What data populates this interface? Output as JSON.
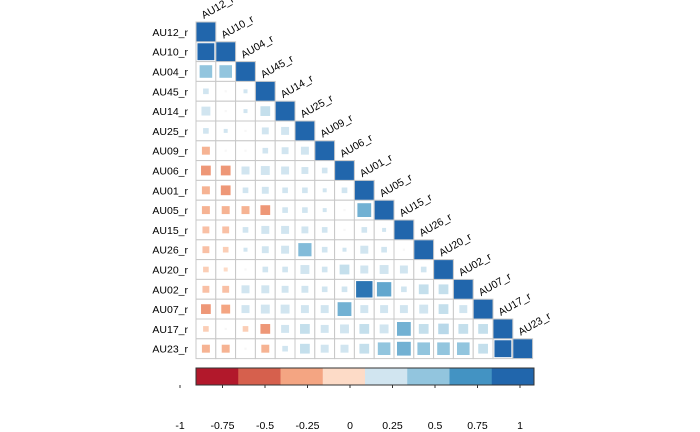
{
  "chart_data": {
    "type": "heatmap",
    "subtype": "correlation-matrix-lower-triangle",
    "glyph": "square",
    "diagonal": "full",
    "variables": [
      "AU12_r",
      "AU10_r",
      "AU04_r",
      "AU45_r",
      "AU14_r",
      "AU25_r",
      "AU09_r",
      "AU06_r",
      "AU01_r",
      "AU05_r",
      "AU15_r",
      "AU26_r",
      "AU20_r",
      "AU02_r",
      "AU07_r",
      "AU17_r",
      "AU23_r"
    ],
    "matrix": [
      [
        1
      ],
      [
        0.9,
        1
      ],
      [
        0.5,
        0.5,
        1
      ],
      [
        0.1,
        0.0,
        0.05,
        1
      ],
      [
        0.25,
        0.0,
        0.05,
        0.3,
        1
      ],
      [
        0.1,
        0.05,
        0.0,
        0.15,
        0.2,
        1
      ],
      [
        -0.2,
        0.0,
        0.0,
        0.1,
        0.15,
        0.2,
        1
      ],
      [
        -0.3,
        -0.3,
        0.2,
        0.25,
        0.2,
        0.15,
        0.1,
        1
      ],
      [
        -0.2,
        -0.3,
        0.1,
        0.15,
        0.1,
        0.1,
        0.05,
        0.1,
        1
      ],
      [
        -0.2,
        -0.2,
        -0.2,
        -0.3,
        0.1,
        0.1,
        0.05,
        0.0,
        0.6,
        1
      ],
      [
        -0.15,
        -0.15,
        0.1,
        0.2,
        0.2,
        0.15,
        0.1,
        0.0,
        0.1,
        0.05,
        1
      ],
      [
        -0.15,
        -0.1,
        0.05,
        0.15,
        0.2,
        0.55,
        0.1,
        0.05,
        0.2,
        0.1,
        0.0,
        1
      ],
      [
        -0.1,
        -0.05,
        0.0,
        0.1,
        0.1,
        0.25,
        0.1,
        0.3,
        0.2,
        0.25,
        0.2,
        0.1,
        1
      ],
      [
        -0.15,
        -0.15,
        0.2,
        0.2,
        0.15,
        0.15,
        0.1,
        0.1,
        0.85,
        0.65,
        0.1,
        0.3,
        0.3,
        1
      ],
      [
        -0.3,
        -0.25,
        0.2,
        0.25,
        0.25,
        0.2,
        0.2,
        0.6,
        0.2,
        0.2,
        0.2,
        0.25,
        0.3,
        0.2,
        1
      ],
      [
        -0.1,
        0.0,
        -0.1,
        -0.3,
        0.2,
        0.3,
        0.2,
        0.25,
        0.3,
        0.25,
        0.6,
        0.3,
        0.35,
        0.3,
        0.3,
        1
      ],
      [
        -0.2,
        -0.2,
        0.0,
        -0.2,
        0.1,
        0.3,
        0.2,
        0.2,
        0.3,
        0.5,
        0.6,
        0.5,
        0.5,
        0.5,
        0.3,
        0.9,
        1
      ]
    ],
    "colorbar": {
      "ticks": [
        -1,
        -0.75,
        -0.5,
        -0.25,
        0,
        0.25,
        0.5,
        0.75,
        1
      ],
      "tick_labels": [
        "-1",
        "-0.75",
        "-0.5",
        "-0.25",
        "0",
        "0.25",
        "0.5",
        "0.75",
        "1"
      ],
      "colors": [
        "#B2182B",
        "#D6604D",
        "#F4A582",
        "#FDDBC7",
        "#D1E5F0",
        "#92C5DE",
        "#4393C3",
        "#2166AC"
      ],
      "range": [
        -1,
        1
      ]
    },
    "legend_position": "bottom"
  }
}
